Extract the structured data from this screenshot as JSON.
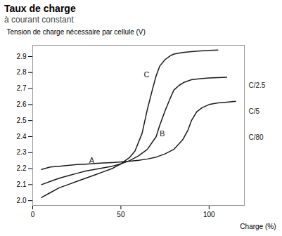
{
  "chart_data": {
    "type": "line",
    "title": "Taux de charge",
    "subtitle": "à courant constant",
    "x_label": "Charge (%)",
    "y_label": "Tension de charge nécessaire par cellule (V)",
    "xlim": [
      0,
      120
    ],
    "ylim": [
      1.97,
      2.97
    ],
    "xticks": [
      0,
      50,
      100
    ],
    "yticks": [
      {
        "value": 2.0,
        "label": "2.0"
      },
      2.1,
      2.2,
      2.3,
      2.4,
      2.5,
      2.6,
      2.7,
      2.8,
      2.9
    ],
    "color": "#1a1a1a",
    "series": [
      {
        "x": [
          5,
          10,
          15,
          20,
          25,
          30,
          35,
          40,
          45,
          50,
          55,
          58,
          62,
          65,
          68,
          70,
          72,
          75,
          78,
          80,
          85,
          90,
          95,
          100,
          105
        ],
        "values": [
          2.02,
          2.05,
          2.08,
          2.1,
          2.12,
          2.14,
          2.16,
          2.18,
          2.2,
          2.23,
          2.27,
          2.31,
          2.42,
          2.57,
          2.7,
          2.78,
          2.84,
          2.88,
          2.905,
          2.915,
          2.925,
          2.93,
          2.935,
          2.938,
          2.94
        ]
      },
      {
        "x": [
          5,
          10,
          15,
          20,
          25,
          30,
          35,
          40,
          45,
          50,
          55,
          60,
          65,
          70,
          72,
          75,
          78,
          80,
          83,
          86,
          90,
          95,
          100,
          105,
          110
        ],
        "values": [
          2.1,
          2.12,
          2.14,
          2.155,
          2.17,
          2.185,
          2.195,
          2.205,
          2.215,
          2.23,
          2.25,
          2.28,
          2.32,
          2.4,
          2.47,
          2.56,
          2.64,
          2.69,
          2.72,
          2.74,
          2.755,
          2.762,
          2.766,
          2.768,
          2.77
        ]
      },
      {
        "x": [
          5,
          10,
          15,
          20,
          25,
          30,
          35,
          40,
          45,
          50,
          55,
          60,
          65,
          70,
          75,
          80,
          85,
          88,
          90,
          93,
          96,
          100,
          105,
          110,
          115
        ],
        "values": [
          2.195,
          2.21,
          2.215,
          2.22,
          2.225,
          2.228,
          2.232,
          2.235,
          2.238,
          2.242,
          2.246,
          2.252,
          2.26,
          2.272,
          2.292,
          2.32,
          2.38,
          2.44,
          2.5,
          2.555,
          2.58,
          2.6,
          2.61,
          2.615,
          2.62
        ]
      }
    ],
    "annotations": [
      {
        "text": "C",
        "x": 63,
        "y": 2.77
      },
      {
        "text": "B",
        "x": 72,
        "y": 2.4
      },
      {
        "text": "A",
        "x": 32,
        "y": 2.235
      },
      {
        "text": "C/2.5",
        "y": 2.72
      },
      {
        "text": "C/5",
        "y": 2.555
      },
      {
        "text": "C/80",
        "y": 2.395
      }
    ]
  }
}
